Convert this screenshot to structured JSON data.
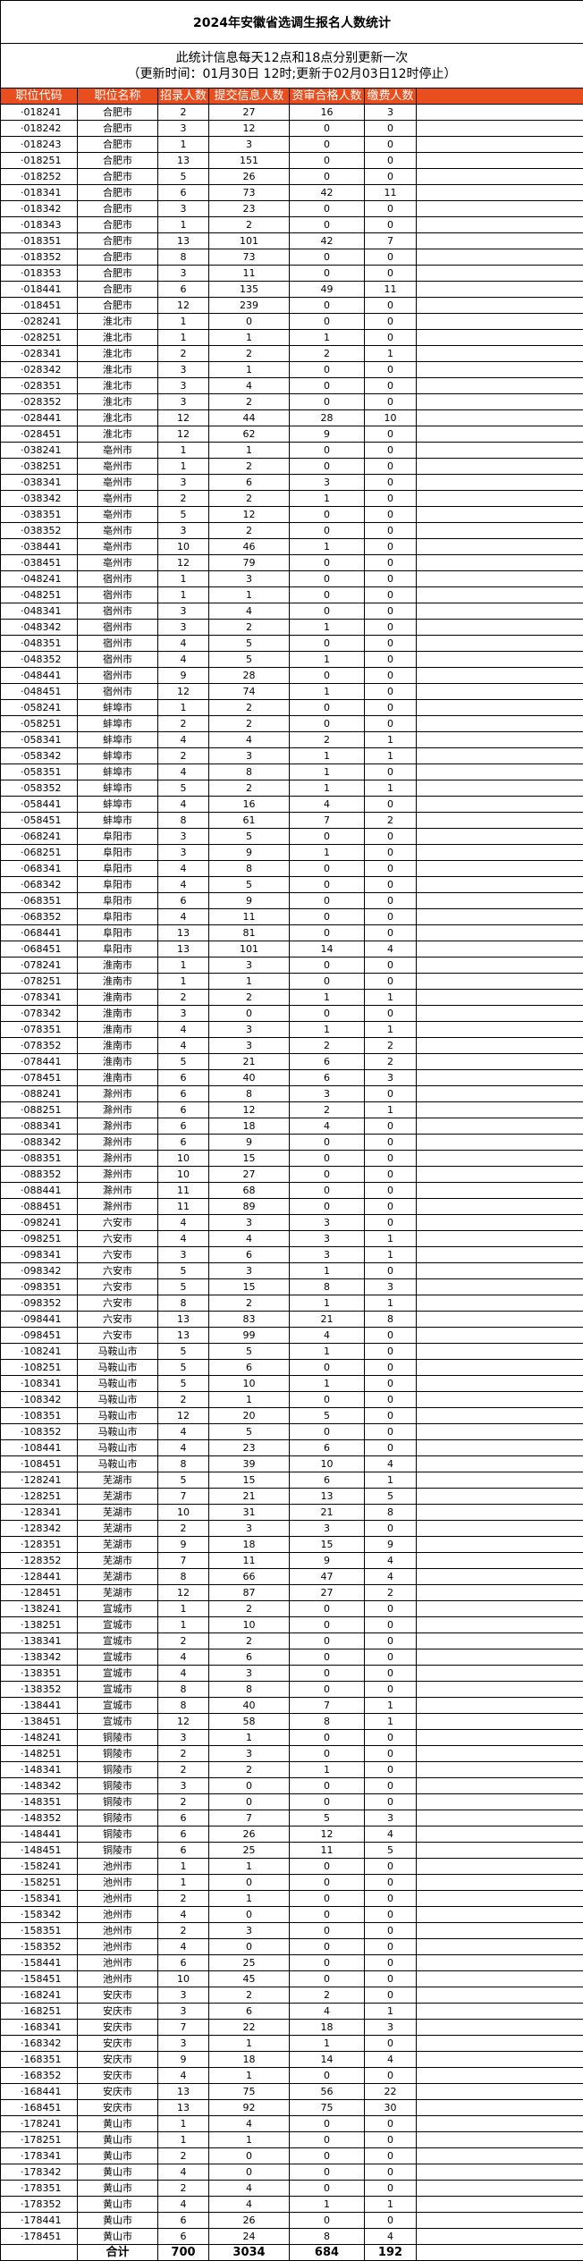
{
  "title": "2024年安徽省选调生报名人数统计",
  "subtitle": {
    "line1": "此统计信息每天12点和18点分别更新一次",
    "line2": "（更新时间：01月30日 12时;更新于02月03日12时停止）"
  },
  "colors": {
    "header_bg": "#E94E1F",
    "header_text": "#FFFFFF"
  },
  "columns": [
    "职位代码",
    "职位名称",
    "招录人数",
    "提交信息人数",
    "资审合格人数",
    "缴费人数"
  ],
  "rows": [
    [
      "·018241",
      "合肥市",
      2,
      27,
      16,
      3
    ],
    [
      "·018242",
      "合肥市",
      3,
      12,
      0,
      0
    ],
    [
      "·018243",
      "合肥市",
      1,
      3,
      0,
      0
    ],
    [
      "·018251",
      "合肥市",
      13,
      151,
      0,
      0
    ],
    [
      "·018252",
      "合肥市",
      5,
      26,
      0,
      0
    ],
    [
      "·018341",
      "合肥市",
      6,
      73,
      42,
      11
    ],
    [
      "·018342",
      "合肥市",
      3,
      23,
      0,
      0
    ],
    [
      "·018343",
      "合肥市",
      1,
      2,
      0,
      0
    ],
    [
      "·018351",
      "合肥市",
      13,
      101,
      42,
      7
    ],
    [
      "·018352",
      "合肥市",
      8,
      73,
      0,
      0
    ],
    [
      "·018353",
      "合肥市",
      3,
      11,
      0,
      0
    ],
    [
      "·018441",
      "合肥市",
      6,
      135,
      49,
      11
    ],
    [
      "·018451",
      "合肥市",
      12,
      239,
      0,
      0
    ],
    [
      "·028241",
      "淮北市",
      1,
      0,
      0,
      0
    ],
    [
      "·028251",
      "淮北市",
      1,
      1,
      1,
      0
    ],
    [
      "·028341",
      "淮北市",
      2,
      2,
      2,
      1
    ],
    [
      "·028342",
      "淮北市",
      3,
      1,
      0,
      0
    ],
    [
      "·028351",
      "淮北市",
      3,
      4,
      0,
      0
    ],
    [
      "·028352",
      "淮北市",
      3,
      2,
      0,
      0
    ],
    [
      "·028441",
      "淮北市",
      12,
      44,
      28,
      10
    ],
    [
      "·028451",
      "淮北市",
      12,
      62,
      9,
      0
    ],
    [
      "·038241",
      "亳州市",
      1,
      1,
      0,
      0
    ],
    [
      "·038251",
      "亳州市",
      1,
      2,
      0,
      0
    ],
    [
      "·038341",
      "亳州市",
      3,
      6,
      3,
      0
    ],
    [
      "·038342",
      "亳州市",
      2,
      2,
      1,
      0
    ],
    [
      "·038351",
      "亳州市",
      5,
      12,
      0,
      0
    ],
    [
      "·038352",
      "亳州市",
      3,
      2,
      0,
      0
    ],
    [
      "·038441",
      "亳州市",
      10,
      46,
      1,
      0
    ],
    [
      "·038451",
      "亳州市",
      12,
      79,
      0,
      0
    ],
    [
      "·048241",
      "宿州市",
      1,
      3,
      0,
      0
    ],
    [
      "·048251",
      "宿州市",
      1,
      1,
      0,
      0
    ],
    [
      "·048341",
      "宿州市",
      3,
      4,
      0,
      0
    ],
    [
      "·048342",
      "宿州市",
      3,
      2,
      1,
      0
    ],
    [
      "·048351",
      "宿州市",
      4,
      5,
      0,
      0
    ],
    [
      "·048352",
      "宿州市",
      4,
      5,
      1,
      0
    ],
    [
      "·048441",
      "宿州市",
      9,
      28,
      0,
      0
    ],
    [
      "·048451",
      "宿州市",
      12,
      74,
      1,
      0
    ],
    [
      "·058241",
      "蚌埠市",
      1,
      2,
      0,
      0
    ],
    [
      "·058251",
      "蚌埠市",
      2,
      2,
      0,
      0
    ],
    [
      "·058341",
      "蚌埠市",
      4,
      4,
      2,
      1
    ],
    [
      "·058342",
      "蚌埠市",
      2,
      3,
      1,
      1
    ],
    [
      "·058351",
      "蚌埠市",
      4,
      8,
      1,
      0
    ],
    [
      "·058352",
      "蚌埠市",
      5,
      2,
      1,
      1
    ],
    [
      "·058441",
      "蚌埠市",
      4,
      16,
      4,
      0
    ],
    [
      "·058451",
      "蚌埠市",
      8,
      61,
      7,
      2
    ],
    [
      "·068241",
      "阜阳市",
      3,
      5,
      0,
      0
    ],
    [
      "·068251",
      "阜阳市",
      3,
      9,
      1,
      0
    ],
    [
      "·068341",
      "阜阳市",
      4,
      8,
      0,
      0
    ],
    [
      "·068342",
      "阜阳市",
      4,
      5,
      0,
      0
    ],
    [
      "·068351",
      "阜阳市",
      6,
      9,
      0,
      0
    ],
    [
      "·068352",
      "阜阳市",
      4,
      11,
      0,
      0
    ],
    [
      "·068441",
      "阜阳市",
      13,
      81,
      0,
      0
    ],
    [
      "·068451",
      "阜阳市",
      13,
      101,
      14,
      4
    ],
    [
      "·078241",
      "淮南市",
      1,
      3,
      0,
      0
    ],
    [
      "·078251",
      "淮南市",
      1,
      1,
      0,
      0
    ],
    [
      "·078341",
      "淮南市",
      2,
      2,
      1,
      1
    ],
    [
      "·078342",
      "淮南市",
      3,
      0,
      0,
      0
    ],
    [
      "·078351",
      "淮南市",
      4,
      3,
      1,
      1
    ],
    [
      "·078352",
      "淮南市",
      4,
      3,
      2,
      2
    ],
    [
      "·078441",
      "淮南市",
      5,
      21,
      6,
      2
    ],
    [
      "·078451",
      "淮南市",
      6,
      40,
      6,
      3
    ],
    [
      "·088241",
      "滁州市",
      6,
      8,
      3,
      0
    ],
    [
      "·088251",
      "滁州市",
      6,
      12,
      2,
      1
    ],
    [
      "·088341",
      "滁州市",
      6,
      18,
      4,
      0
    ],
    [
      "·088342",
      "滁州市",
      6,
      9,
      0,
      0
    ],
    [
      "·088351",
      "滁州市",
      10,
      15,
      0,
      0
    ],
    [
      "·088352",
      "滁州市",
      10,
      27,
      0,
      0
    ],
    [
      "·088441",
      "滁州市",
      11,
      68,
      0,
      0
    ],
    [
      "·088451",
      "滁州市",
      11,
      89,
      0,
      0
    ],
    [
      "·098241",
      "六安市",
      4,
      3,
      3,
      0
    ],
    [
      "·098251",
      "六安市",
      4,
      4,
      3,
      1
    ],
    [
      "·098341",
      "六安市",
      3,
      6,
      3,
      1
    ],
    [
      "·098342",
      "六安市",
      5,
      3,
      1,
      0
    ],
    [
      "·098351",
      "六安市",
      5,
      15,
      8,
      3
    ],
    [
      "·098352",
      "六安市",
      8,
      2,
      1,
      1
    ],
    [
      "·098441",
      "六安市",
      13,
      83,
      21,
      8
    ],
    [
      "·098451",
      "六安市",
      13,
      99,
      4,
      0
    ],
    [
      "·108241",
      "马鞍山市",
      5,
      5,
      1,
      0
    ],
    [
      "·108251",
      "马鞍山市",
      5,
      6,
      0,
      0
    ],
    [
      "·108341",
      "马鞍山市",
      5,
      10,
      1,
      0
    ],
    [
      "·108342",
      "马鞍山市",
      2,
      1,
      0,
      0
    ],
    [
      "·108351",
      "马鞍山市",
      12,
      20,
      5,
      0
    ],
    [
      "·108352",
      "马鞍山市",
      4,
      5,
      0,
      0
    ],
    [
      "·108441",
      "马鞍山市",
      4,
      23,
      6,
      0
    ],
    [
      "·108451",
      "马鞍山市",
      8,
      39,
      10,
      4
    ],
    [
      "·128241",
      "芜湖市",
      5,
      15,
      6,
      1
    ],
    [
      "·128251",
      "芜湖市",
      7,
      21,
      13,
      5
    ],
    [
      "·128341",
      "芜湖市",
      10,
      31,
      21,
      8
    ],
    [
      "·128342",
      "芜湖市",
      2,
      3,
      3,
      0
    ],
    [
      "·128351",
      "芜湖市",
      9,
      18,
      15,
      9
    ],
    [
      "·128352",
      "芜湖市",
      7,
      11,
      9,
      4
    ],
    [
      "·128441",
      "芜湖市",
      8,
      66,
      47,
      4
    ],
    [
      "·128451",
      "芜湖市",
      12,
      87,
      27,
      2
    ],
    [
      "·138241",
      "宣城市",
      1,
      2,
      0,
      0
    ],
    [
      "·138251",
      "宣城市",
      1,
      10,
      0,
      0
    ],
    [
      "·138341",
      "宣城市",
      2,
      2,
      0,
      0
    ],
    [
      "·138342",
      "宣城市",
      4,
      6,
      0,
      0
    ],
    [
      "·138351",
      "宣城市",
      4,
      3,
      0,
      0
    ],
    [
      "·138352",
      "宣城市",
      8,
      8,
      0,
      0
    ],
    [
      "·138441",
      "宣城市",
      8,
      40,
      7,
      1
    ],
    [
      "·138451",
      "宣城市",
      12,
      58,
      8,
      1
    ],
    [
      "·148241",
      "铜陵市",
      3,
      1,
      0,
      0
    ],
    [
      "·148251",
      "铜陵市",
      2,
      3,
      0,
      0
    ],
    [
      "·148341",
      "铜陵市",
      2,
      2,
      1,
      0
    ],
    [
      "·148342",
      "铜陵市",
      3,
      0,
      0,
      0
    ],
    [
      "·148351",
      "铜陵市",
      2,
      0,
      0,
      0
    ],
    [
      "·148352",
      "铜陵市",
      6,
      7,
      5,
      3
    ],
    [
      "·148441",
      "铜陵市",
      6,
      26,
      12,
      4
    ],
    [
      "·148451",
      "铜陵市",
      6,
      25,
      11,
      5
    ],
    [
      "·158241",
      "池州市",
      1,
      1,
      0,
      0
    ],
    [
      "·158251",
      "池州市",
      1,
      0,
      0,
      0
    ],
    [
      "·158341",
      "池州市",
      2,
      1,
      0,
      0
    ],
    [
      "·158342",
      "池州市",
      4,
      0,
      0,
      0
    ],
    [
      "·158351",
      "池州市",
      2,
      3,
      0,
      0
    ],
    [
      "·158352",
      "池州市",
      4,
      0,
      0,
      0
    ],
    [
      "·158441",
      "池州市",
      6,
      25,
      0,
      0
    ],
    [
      "·158451",
      "池州市",
      10,
      45,
      0,
      0
    ],
    [
      "·168241",
      "安庆市",
      3,
      2,
      2,
      0
    ],
    [
      "·168251",
      "安庆市",
      3,
      6,
      4,
      1
    ],
    [
      "·168341",
      "安庆市",
      7,
      22,
      18,
      3
    ],
    [
      "·168342",
      "安庆市",
      3,
      1,
      1,
      0
    ],
    [
      "·168351",
      "安庆市",
      9,
      18,
      14,
      4
    ],
    [
      "·168352",
      "安庆市",
      4,
      1,
      0,
      0
    ],
    [
      "·168441",
      "安庆市",
      13,
      75,
      56,
      22
    ],
    [
      "·168451",
      "安庆市",
      13,
      92,
      75,
      30
    ],
    [
      "·178241",
      "黄山市",
      1,
      4,
      0,
      0
    ],
    [
      "·178251",
      "黄山市",
      1,
      1,
      0,
      0
    ],
    [
      "·178341",
      "黄山市",
      2,
      0,
      0,
      0
    ],
    [
      "·178342",
      "黄山市",
      4,
      0,
      0,
      0
    ],
    [
      "·178351",
      "黄山市",
      2,
      4,
      0,
      0
    ],
    [
      "·178352",
      "黄山市",
      4,
      4,
      1,
      1
    ],
    [
      "·178441",
      "黄山市",
      6,
      26,
      0,
      0
    ],
    [
      "·178451",
      "黄山市",
      6,
      24,
      8,
      4
    ]
  ],
  "total": {
    "label": "合计",
    "recruit": 700,
    "submitted": 3034,
    "qualified": 684,
    "paid": 192
  }
}
